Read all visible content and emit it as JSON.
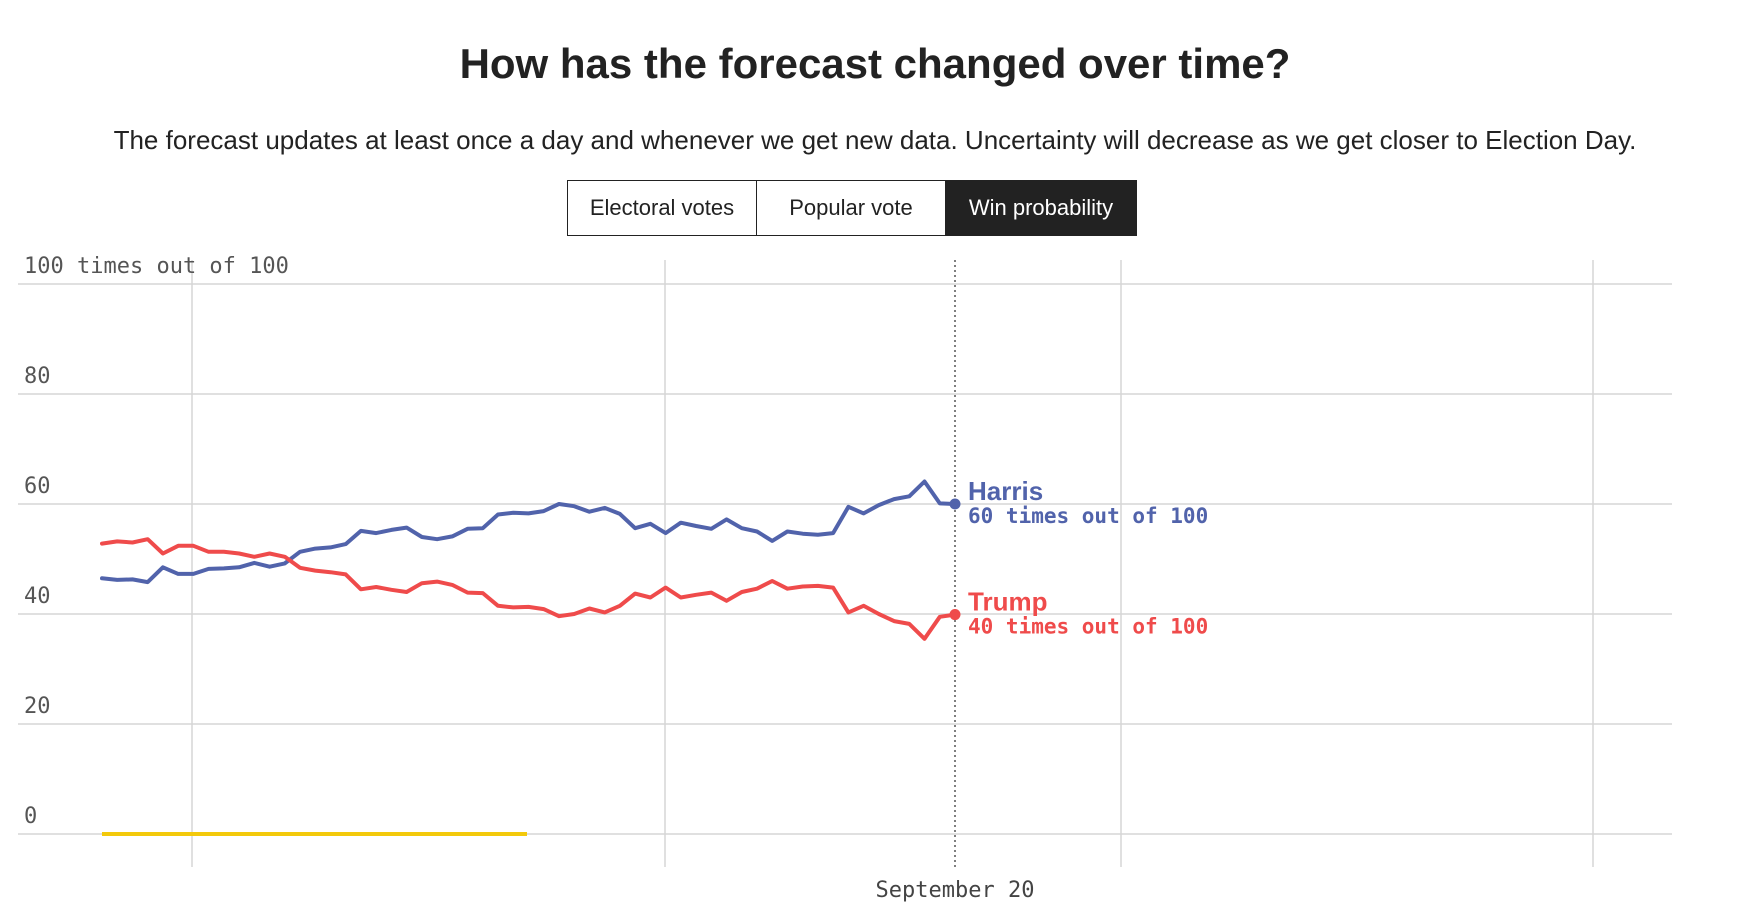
{
  "header": {
    "title": "How has the forecast changed over time?",
    "subtitle": "The forecast updates at least once a day and whenever we get new data. Uncertainty will decrease as we get closer to Election Day."
  },
  "toggle": {
    "electoral_votes": "Electoral votes",
    "popular_vote": "Popular vote",
    "win_probability": "Win probability",
    "active": "Win probability"
  },
  "chart_data": {
    "type": "line",
    "ylabel": "100 times out of 100",
    "ylim": [
      0,
      100
    ],
    "y_ticks": [
      {
        "value": 100,
        "label": "100 times out of 100"
      },
      {
        "value": 80,
        "label": "80"
      },
      {
        "value": 60,
        "label": "60"
      },
      {
        "value": 40,
        "label": "40"
      },
      {
        "value": 20,
        "label": "20"
      },
      {
        "value": 0,
        "label": "0"
      }
    ],
    "x_tick_labels": [
      "September 20"
    ],
    "grid": true,
    "series": [
      {
        "name": "Harris",
        "label": "60 times out of 100",
        "color": "#5163ab",
        "values": [
          46.5,
          46.2,
          46.3,
          45.8,
          48.5,
          47.3,
          47.3,
          48.2,
          48.3,
          48.5,
          49.3,
          48.6,
          49.2,
          51.3,
          51.9,
          52.1,
          52.7,
          55.1,
          54.7,
          55.3,
          55.7,
          54.0,
          53.6,
          54.1,
          55.5,
          55.6,
          58.1,
          58.4,
          58.3,
          58.7,
          60.0,
          59.6,
          58.6,
          59.3,
          58.2,
          55.6,
          56.4,
          54.7,
          56.6,
          56.0,
          55.5,
          57.2,
          55.6,
          55.0,
          53.3,
          55.0,
          54.6,
          54.4,
          54.7,
          59.5,
          58.3,
          59.8,
          60.9,
          61.4,
          64.1,
          60.1,
          60.0
        ]
      },
      {
        "name": "Trump",
        "label": "40 times out of 100",
        "color": "#ef4b4b",
        "values": [
          52.8,
          53.2,
          53.0,
          53.6,
          51.0,
          52.4,
          52.4,
          51.3,
          51.3,
          51.0,
          50.4,
          51.0,
          50.4,
          48.4,
          47.9,
          47.6,
          47.2,
          44.5,
          44.9,
          44.4,
          44.0,
          45.6,
          45.9,
          45.3,
          43.9,
          43.8,
          41.5,
          41.2,
          41.3,
          40.9,
          39.6,
          40.0,
          41.0,
          40.3,
          41.5,
          43.7,
          43.0,
          44.8,
          43.0,
          43.5,
          43.9,
          42.4,
          44.0,
          44.6,
          46.0,
          44.6,
          45.0,
          45.1,
          44.8,
          40.3,
          41.5,
          40.0,
          38.7,
          38.2,
          35.5,
          39.5,
          39.9
        ]
      }
    ],
    "annotation_bar_color": "#f3c90b",
    "marker_label": "September 20"
  }
}
